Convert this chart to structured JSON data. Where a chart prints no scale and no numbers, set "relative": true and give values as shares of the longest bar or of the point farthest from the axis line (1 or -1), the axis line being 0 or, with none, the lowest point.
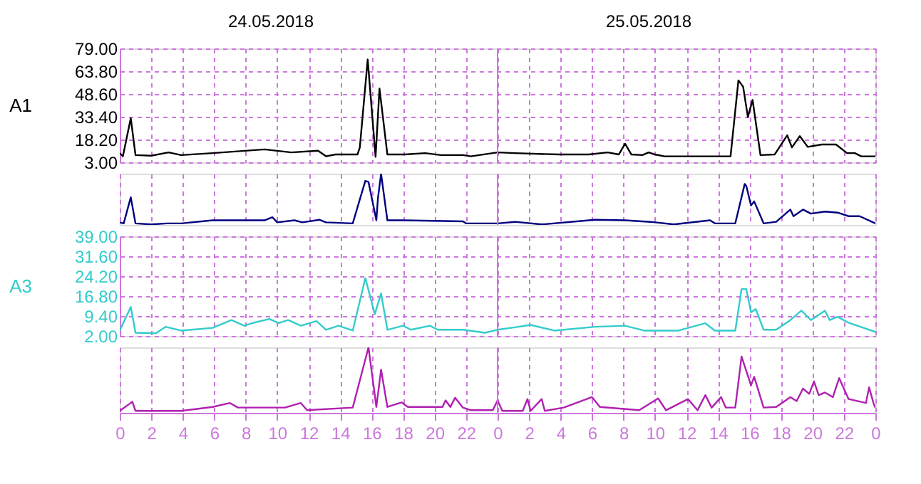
{
  "chart_data": [
    {
      "type": "line",
      "ylabel": "A1",
      "annotations": [
        "24.05.2018",
        "25.05.2018"
      ],
      "grid": true,
      "tick_labels": "y",
      "xlim": [
        "2018-05-24T00:00",
        "2018-05-26T00:00"
      ],
      "xticks": [
        "2018-05-24T00:00",
        "2018-05-24T02:00",
        "2018-05-24T04:00",
        "2018-05-24T06:00",
        "2018-05-24T08:00",
        "2018-05-24T10:00",
        "2018-05-24T12:00",
        "2018-05-24T14:00",
        "2018-05-24T16:00",
        "2018-05-24T18:00",
        "2018-05-24T20:00",
        "2018-05-24T22:00",
        "2018-05-25T00:00",
        "2018-05-25T02:00",
        "2018-05-25T04:00",
        "2018-05-25T06:00",
        "2018-05-25T08:00",
        "2018-05-25T10:00",
        "2018-05-25T12:00",
        "2018-05-25T14:00",
        "2018-05-25T16:00",
        "2018-05-25T18:00",
        "2018-05-25T20:00",
        "2018-05-25T22:00",
        "2018-05-26T00:00"
      ],
      "ylim": [
        3,
        79
      ],
      "yticks": [
        {
          "value": 3,
          "label": "3.00"
        },
        {
          "value": 18.2,
          "label": "18.20"
        },
        {
          "value": 33.4,
          "label": "33.40"
        },
        {
          "value": 48.6,
          "label": "48.60"
        },
        {
          "value": 63.8,
          "label": "63.80"
        },
        {
          "value": 79,
          "label": "79.00"
        }
      ],
      "ref_lines": [
        {
          "axis": "x",
          "value": "2018-05-25T00:00",
          "color": "#cc77dd",
          "line_style": "solid"
        }
      ],
      "x": [
        "2018-05-24T00:00",
        "2018-05-24T00:12",
        "2018-05-24T00:42",
        "2018-05-24T01:00",
        "2018-05-24T02:00",
        "2018-05-24T03:06",
        "2018-05-24T03:54",
        "2018-05-24T05:54",
        "2018-05-24T09:12",
        "2018-05-24T10:54",
        "2018-05-24T12:36",
        "2018-05-24T13:06",
        "2018-05-24T13:42",
        "2018-05-24T15:06",
        "2018-05-24T15:15",
        "2018-05-24T15:45",
        "2018-05-24T16:15",
        "2018-05-24T16:30",
        "2018-05-24T17:00",
        "2018-05-24T18:06",
        "2018-05-24T19:24",
        "2018-05-24T20:24",
        "2018-05-24T21:48",
        "2018-05-24T22:18",
        "2018-05-25T00:00",
        "2018-05-25T01:06",
        "2018-05-25T03:54",
        "2018-05-25T05:48",
        "2018-05-25T07:00",
        "2018-05-25T07:42",
        "2018-05-25T08:06",
        "2018-05-25T08:30",
        "2018-05-25T09:12",
        "2018-05-25T09:36",
        "2018-05-25T10:00",
        "2018-05-25T10:36",
        "2018-05-25T14:48",
        "2018-05-25T15:18",
        "2018-05-25T15:36",
        "2018-05-25T15:54",
        "2018-05-25T16:12",
        "2018-05-25T16:42",
        "2018-05-25T17:36",
        "2018-05-25T18:24",
        "2018-05-25T18:42",
        "2018-05-25T19:12",
        "2018-05-25T19:42",
        "2018-05-25T20:36",
        "2018-05-25T21:30",
        "2018-05-25T22:12",
        "2018-05-25T22:42",
        "2018-05-25T23:06",
        "2018-05-26T00:00"
      ],
      "series": [
        {
          "color": "#000000",
          "values": [
            9.1,
            7.0,
            32.4,
            7.8,
            7.4,
            9.6,
            7.8,
            9.1,
            11.6,
            9.6,
            10.7,
            7.0,
            8.2,
            8.2,
            12.9,
            71.6,
            6.6,
            52.2,
            8.2,
            8.2,
            9.1,
            7.8,
            7.8,
            7.0,
            9.6,
            9.1,
            8.2,
            8.2,
            9.6,
            8.2,
            15.4,
            8.2,
            7.8,
            9.6,
            8.2,
            7.0,
            7.0,
            57.7,
            53.4,
            33.2,
            44.6,
            7.8,
            8.2,
            21.0,
            12.9,
            20.5,
            13.3,
            14.9,
            14.9,
            9.1,
            9.1,
            7.0,
            7.0
          ]
        }
      ]
    },
    {
      "type": "line",
      "relative": true,
      "grid": "x",
      "tick_labels": false,
      "xlim": [
        "2018-05-24T00:00",
        "2018-05-26T00:00"
      ],
      "xticks": [
        "2018-05-24T00:00",
        "2018-05-24T02:00",
        "2018-05-24T04:00",
        "2018-05-24T06:00",
        "2018-05-24T08:00",
        "2018-05-24T10:00",
        "2018-05-24T12:00",
        "2018-05-24T14:00",
        "2018-05-24T16:00",
        "2018-05-24T18:00",
        "2018-05-24T20:00",
        "2018-05-24T22:00",
        "2018-05-25T00:00",
        "2018-05-25T02:00",
        "2018-05-25T04:00",
        "2018-05-25T06:00",
        "2018-05-25T08:00",
        "2018-05-25T10:00",
        "2018-05-25T12:00",
        "2018-05-25T14:00",
        "2018-05-25T16:00",
        "2018-05-25T18:00",
        "2018-05-25T20:00",
        "2018-05-25T22:00",
        "2018-05-26T00:00"
      ],
      "ref_lines": [
        {
          "axis": "x",
          "value": "2018-05-25T00:00",
          "color": "#cc77dd",
          "line_style": "solid"
        }
      ],
      "x": [
        "2018-05-24T00:00",
        "2018-05-24T00:15",
        "2018-05-24T00:42",
        "2018-05-24T01:00",
        "2018-05-24T02:00",
        "2018-05-24T03:00",
        "2018-05-24T03:54",
        "2018-05-24T05:54",
        "2018-05-24T09:12",
        "2018-05-24T09:42",
        "2018-05-24T10:00",
        "2018-05-24T11:06",
        "2018-05-24T11:36",
        "2018-05-24T12:42",
        "2018-05-24T13:06",
        "2018-05-24T14:48",
        "2018-05-24T15:36",
        "2018-05-24T15:48",
        "2018-05-24T16:18",
        "2018-05-24T16:24",
        "2018-05-24T16:36",
        "2018-05-24T17:00",
        "2018-05-24T18:00",
        "2018-05-24T21:48",
        "2018-05-24T22:00",
        "2018-05-25T00:00",
        "2018-05-25T01:06",
        "2018-05-25T02:48",
        "2018-05-25T06:12",
        "2018-05-25T08:06",
        "2018-05-25T09:42",
        "2018-05-25T11:12",
        "2018-05-25T13:30",
        "2018-05-25T13:48",
        "2018-05-25T15:06",
        "2018-05-25T15:42",
        "2018-05-25T15:48",
        "2018-05-25T16:06",
        "2018-05-25T16:18",
        "2018-05-25T16:54",
        "2018-05-25T17:42",
        "2018-05-25T18:36",
        "2018-05-25T18:48",
        "2018-05-25T19:24",
        "2018-05-25T19:54",
        "2018-05-25T20:48",
        "2018-05-25T21:36",
        "2018-05-25T22:18",
        "2018-05-25T23:00",
        "2018-05-26T00:00"
      ],
      "series": [
        {
          "color": "#000080",
          "values": [
            0.05,
            0.03,
            0.54,
            0.03,
            0.01,
            0.03,
            0.03,
            0.09,
            0.09,
            0.15,
            0.05,
            0.09,
            0.05,
            0.1,
            0.05,
            0.03,
            0.86,
            0.84,
            0.09,
            0.52,
            1.0,
            0.09,
            0.09,
            0.07,
            0.03,
            0.03,
            0.06,
            0.01,
            0.1,
            0.09,
            0.06,
            0.01,
            0.09,
            0.03,
            0.03,
            0.8,
            0.76,
            0.38,
            0.46,
            0.03,
            0.06,
            0.3,
            0.17,
            0.3,
            0.22,
            0.26,
            0.24,
            0.17,
            0.17,
            0.03
          ]
        }
      ]
    },
    {
      "type": "line",
      "ylabel": "A3",
      "grid": true,
      "tick_labels": "y",
      "xlim": [
        "2018-05-24T00:00",
        "2018-05-26T00:00"
      ],
      "xticks": [
        "2018-05-24T00:00",
        "2018-05-24T02:00",
        "2018-05-24T04:00",
        "2018-05-24T06:00",
        "2018-05-24T08:00",
        "2018-05-24T10:00",
        "2018-05-24T12:00",
        "2018-05-24T14:00",
        "2018-05-24T16:00",
        "2018-05-24T18:00",
        "2018-05-24T20:00",
        "2018-05-24T22:00",
        "2018-05-25T00:00",
        "2018-05-25T02:00",
        "2018-05-25T04:00",
        "2018-05-25T06:00",
        "2018-05-25T08:00",
        "2018-05-25T10:00",
        "2018-05-25T12:00",
        "2018-05-25T14:00",
        "2018-05-25T16:00",
        "2018-05-25T18:00",
        "2018-05-25T20:00",
        "2018-05-25T22:00",
        "2018-05-26T00:00"
      ],
      "ylim": [
        2,
        39
      ],
      "yticks": [
        {
          "value": 2,
          "label": "2.00"
        },
        {
          "value": 9.4,
          "label": "9.40"
        },
        {
          "value": 16.8,
          "label": "16.80"
        },
        {
          "value": 24.2,
          "label": "24.20"
        },
        {
          "value": 31.6,
          "label": "31.60"
        },
        {
          "value": 39,
          "label": "39.00"
        }
      ],
      "ref_lines": [
        {
          "axis": "x",
          "value": "2018-05-25T00:00",
          "color": "#cc77dd",
          "line_style": "solid"
        }
      ],
      "x": [
        "2018-05-24T00:00",
        "2018-05-24T00:42",
        "2018-05-24T01:00",
        "2018-05-24T02:18",
        "2018-05-24T02:54",
        "2018-05-24T03:54",
        "2018-05-24T05:54",
        "2018-05-24T07:06",
        "2018-05-24T07:54",
        "2018-05-24T08:30",
        "2018-05-24T09:30",
        "2018-05-24T10:06",
        "2018-05-24T10:42",
        "2018-05-24T11:30",
        "2018-05-24T12:30",
        "2018-05-24T13:06",
        "2018-05-24T13:54",
        "2018-05-24T14:48",
        "2018-05-24T15:36",
        "2018-05-24T16:12",
        "2018-05-24T16:36",
        "2018-05-24T17:00",
        "2018-05-24T18:00",
        "2018-05-24T18:30",
        "2018-05-24T19:42",
        "2018-05-24T20:12",
        "2018-05-24T21:48",
        "2018-05-24T23:12",
        "2018-05-25T00:00",
        "2018-05-25T01:06",
        "2018-05-25T02:06",
        "2018-05-25T03:36",
        "2018-05-25T06:12",
        "2018-05-25T08:06",
        "2018-05-25T09:18",
        "2018-05-25T11:30",
        "2018-05-25T13:12",
        "2018-05-25T13:48",
        "2018-05-25T15:06",
        "2018-05-25T15:30",
        "2018-05-25T15:48",
        "2018-05-25T16:06",
        "2018-05-25T16:24",
        "2018-05-25T16:54",
        "2018-05-25T17:42",
        "2018-05-25T18:36",
        "2018-05-25T19:18",
        "2018-05-25T19:54",
        "2018-05-25T20:48",
        "2018-05-25T21:06",
        "2018-05-25T21:36",
        "2018-05-25T22:18",
        "2018-05-26T00:00"
      ],
      "series": [
        {
          "color": "#33cccc",
          "values": [
            4.0,
            12.8,
            3.2,
            3.0,
            5.4,
            4.0,
            5.0,
            7.9,
            5.8,
            6.9,
            8.3,
            6.8,
            7.9,
            5.8,
            7.5,
            4.3,
            5.8,
            4.0,
            23.5,
            10.1,
            17.8,
            4.3,
            5.8,
            4.3,
            5.8,
            4.3,
            4.3,
            3.2,
            4.3,
            5.2,
            6.1,
            4.0,
            5.4,
            5.8,
            4.0,
            4.0,
            6.7,
            4.0,
            4.0,
            19.4,
            19.4,
            10.8,
            12.0,
            4.3,
            4.3,
            7.9,
            11.4,
            7.9,
            11.4,
            7.9,
            9.1,
            6.9,
            3.5
          ]
        }
      ]
    },
    {
      "type": "line",
      "relative": true,
      "grid": "x",
      "tick_labels": "x",
      "xlim": [
        "2018-05-24T00:00",
        "2018-05-26T00:00"
      ],
      "xticks": [
        {
          "value": "2018-05-24T00:00",
          "label": "0"
        },
        {
          "value": "2018-05-24T02:00",
          "label": "2"
        },
        {
          "value": "2018-05-24T04:00",
          "label": "4"
        },
        {
          "value": "2018-05-24T06:00",
          "label": "6"
        },
        {
          "value": "2018-05-24T08:00",
          "label": "8"
        },
        {
          "value": "2018-05-24T10:00",
          "label": "10"
        },
        {
          "value": "2018-05-24T12:00",
          "label": "12"
        },
        {
          "value": "2018-05-24T14:00",
          "label": "14"
        },
        {
          "value": "2018-05-24T16:00",
          "label": "16"
        },
        {
          "value": "2018-05-24T18:00",
          "label": "18"
        },
        {
          "value": "2018-05-24T20:00",
          "label": "20"
        },
        {
          "value": "2018-05-24T22:00",
          "label": "22"
        },
        {
          "value": "2018-05-25T00:00",
          "label": "0"
        },
        {
          "value": "2018-05-25T02:00",
          "label": "2"
        },
        {
          "value": "2018-05-25T04:00",
          "label": "4"
        },
        {
          "value": "2018-05-25T06:00",
          "label": "6"
        },
        {
          "value": "2018-05-25T08:00",
          "label": "8"
        },
        {
          "value": "2018-05-25T10:00",
          "label": "10"
        },
        {
          "value": "2018-05-25T12:00",
          "label": "12"
        },
        {
          "value": "2018-05-25T14:00",
          "label": "14"
        },
        {
          "value": "2018-05-25T16:00",
          "label": "16"
        },
        {
          "value": "2018-05-25T18:00",
          "label": "18"
        },
        {
          "value": "2018-05-25T20:00",
          "label": "20"
        },
        {
          "value": "2018-05-25T22:00",
          "label": "22"
        },
        {
          "value": "2018-05-26T00:00",
          "label": "0"
        }
      ],
      "ref_lines": [
        {
          "axis": "x",
          "value": "2018-05-25T00:00",
          "color": "#cc77dd",
          "line_style": "solid"
        }
      ],
      "x": [
        "2018-05-24T00:00",
        "2018-05-24T00:48",
        "2018-05-24T01:00",
        "2018-05-24T03:54",
        "2018-05-24T05:54",
        "2018-05-24T07:00",
        "2018-05-24T07:30",
        "2018-05-24T10:30",
        "2018-05-24T11:30",
        "2018-05-24T11:54",
        "2018-05-24T14:48",
        "2018-05-24T15:48",
        "2018-05-24T16:18",
        "2018-05-24T16:36",
        "2018-05-24T17:00",
        "2018-05-24T17:54",
        "2018-05-24T18:18",
        "2018-05-24T20:30",
        "2018-05-24T20:42",
        "2018-05-24T21:00",
        "2018-05-24T21:18",
        "2018-05-24T21:48",
        "2018-05-24T22:18",
        "2018-05-24T23:42",
        "2018-05-25T00:00",
        "2018-05-25T00:18",
        "2018-05-25T01:36",
        "2018-05-25T01:54",
        "2018-05-25T02:06",
        "2018-05-25T02:48",
        "2018-05-25T03:00",
        "2018-05-25T04:12",
        "2018-05-25T06:00",
        "2018-05-25T06:30",
        "2018-05-25T09:00",
        "2018-05-25T10:12",
        "2018-05-25T10:42",
        "2018-05-25T12:06",
        "2018-05-25T12:42",
        "2018-05-25T13:12",
        "2018-05-25T13:36",
        "2018-05-25T14:12",
        "2018-05-25T14:30",
        "2018-05-25T15:06",
        "2018-05-25T15:30",
        "2018-05-25T16:06",
        "2018-05-25T16:18",
        "2018-05-25T16:54",
        "2018-05-25T17:42",
        "2018-05-25T18:36",
        "2018-05-25T19:00",
        "2018-05-25T19:24",
        "2018-05-25T19:48",
        "2018-05-25T20:06",
        "2018-05-25T20:24",
        "2018-05-25T20:48",
        "2018-05-25T21:18",
        "2018-05-25T21:42",
        "2018-05-25T22:18",
        "2018-05-25T23:24",
        "2018-05-25T23:36",
        "2018-05-25T23:54",
        "2018-05-26T00:00"
      ],
      "series": [
        {
          "color": "#b020b0",
          "values": [
            0.03,
            0.17,
            0.03,
            0.03,
            0.09,
            0.15,
            0.08,
            0.08,
            0.15,
            0.04,
            0.08,
            1.0,
            0.09,
            0.66,
            0.09,
            0.16,
            0.09,
            0.09,
            0.19,
            0.09,
            0.23,
            0.08,
            0.04,
            0.04,
            0.19,
            0.03,
            0.03,
            0.21,
            0.03,
            0.21,
            0.03,
            0.08,
            0.24,
            0.09,
            0.04,
            0.22,
            0.04,
            0.21,
            0.04,
            0.27,
            0.08,
            0.24,
            0.08,
            0.08,
            0.86,
            0.42,
            0.55,
            0.08,
            0.09,
            0.24,
            0.18,
            0.37,
            0.29,
            0.48,
            0.27,
            0.31,
            0.24,
            0.53,
            0.21,
            0.15,
            0.39,
            0.13,
            0.08
          ]
        }
      ]
    }
  ]
}
